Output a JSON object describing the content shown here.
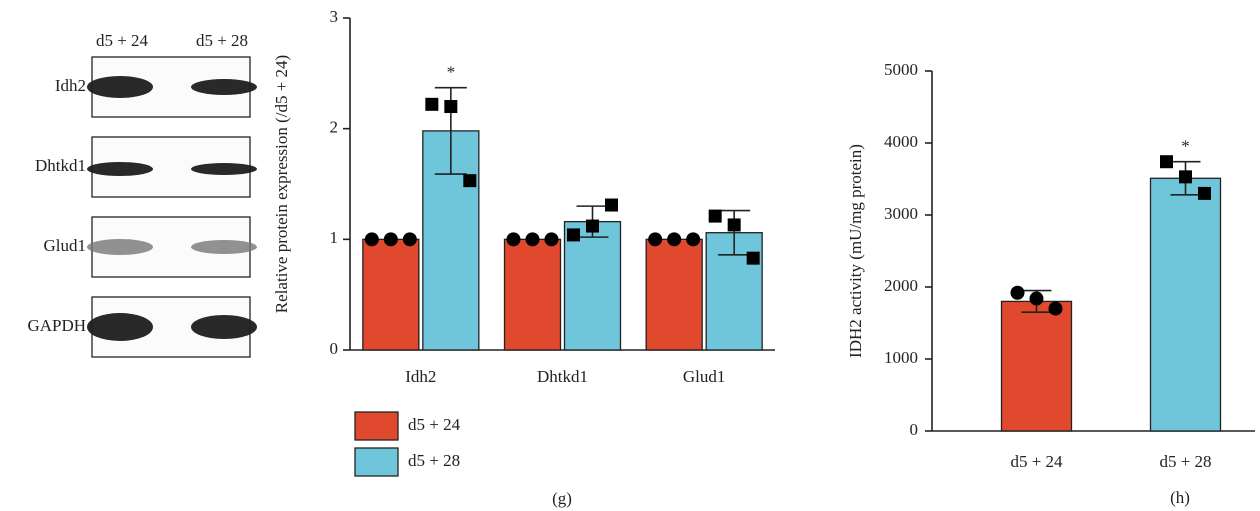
{
  "blot": {
    "lanes": [
      "d5 + 24",
      "d5 + 28"
    ],
    "rows": [
      "Idh2",
      "Dhtkd1",
      "Glud1",
      "GAPDH"
    ]
  },
  "chart_data": [
    {
      "type": "bar",
      "y_label": "Relative protein expression (/d5 + 24)",
      "caption": "(g)",
      "categories": [
        "Idh2",
        "Dhtkd1",
        "Glud1"
      ],
      "series": [
        {
          "name": "d5 + 24",
          "color": "#e0492d",
          "marker": "circle",
          "values": [
            1,
            1,
            1
          ],
          "points": [
            [
              1,
              1,
              1
            ],
            [
              1,
              1,
              1
            ],
            [
              1,
              1,
              1
            ]
          ]
        },
        {
          "name": "d5 + 28",
          "color": "#6fc5da",
          "marker": "square",
          "values": [
            1.98,
            1.16,
            1.06
          ],
          "errors": [
            0.39,
            0.14,
            0.2
          ],
          "annotations": [
            "*",
            null,
            null
          ],
          "points": [
            [
              2.22,
              2.2,
              1.53
            ],
            [
              1.04,
              1.12,
              1.31
            ],
            [
              1.21,
              1.13,
              0.83
            ]
          ]
        }
      ],
      "ylim": [
        0,
        3
      ],
      "yticks": [
        0,
        1,
        2,
        3
      ],
      "legend": "bottom-left"
    },
    {
      "type": "bar",
      "y_label": "IDH2 activity (mU/mg protein)",
      "caption": "(h)",
      "categories": [
        "d5 + 24",
        "d5 + 28"
      ],
      "values": [
        1800,
        3510
      ],
      "errors": [
        150,
        230
      ],
      "colors": [
        "#e0492d",
        "#6fc5da"
      ],
      "markers": [
        "circle",
        "square"
      ],
      "annotations": [
        null,
        "*"
      ],
      "points": [
        [
          1920,
          1840,
          1700
        ],
        [
          3740,
          3530,
          3300
        ]
      ],
      "ylim": [
        0,
        5000
      ],
      "yticks": [
        0,
        1000,
        2000,
        3000,
        4000,
        5000
      ]
    }
  ]
}
